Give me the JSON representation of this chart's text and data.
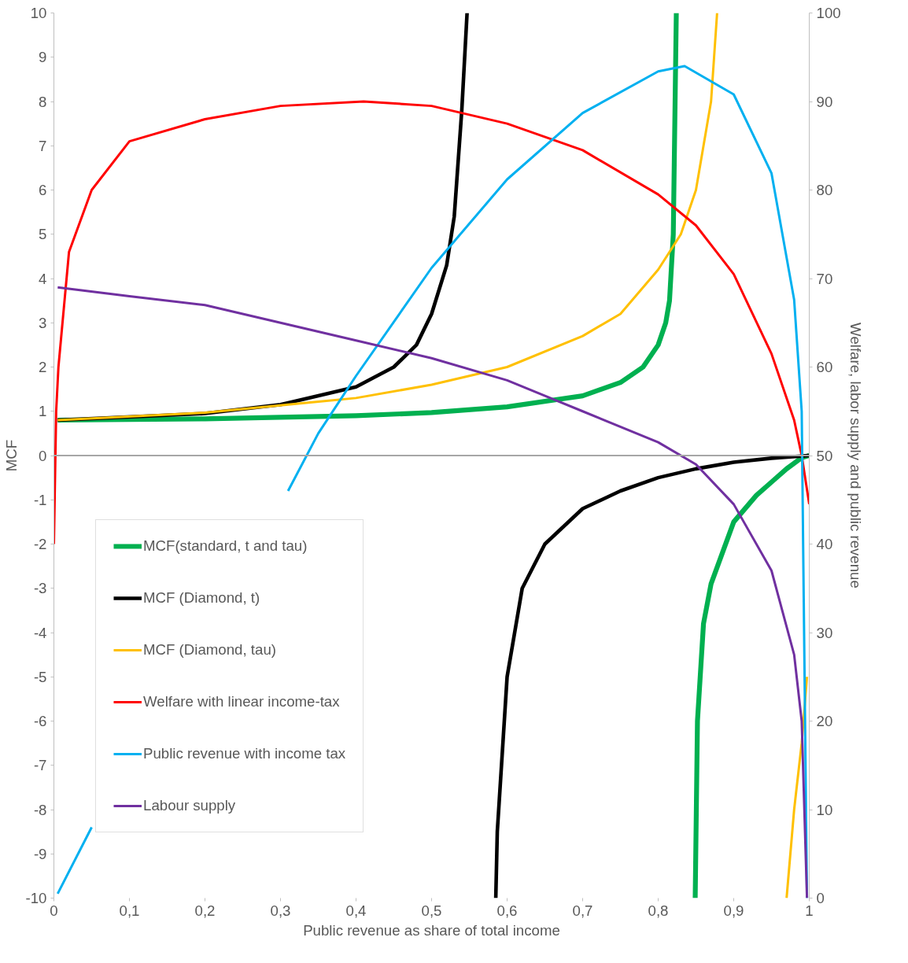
{
  "chart_data": {
    "type": "line",
    "xlabel": "Public revenue as share of total income",
    "ylabel": "MCF",
    "y2label": "Welfare, labor supply and public revenue",
    "xlim": [
      0,
      1
    ],
    "xticks": [
      0,
      {
        "value": 0.1,
        "label": "0,1"
      },
      {
        "value": 0.2,
        "label": "0,2"
      },
      {
        "value": 0.3,
        "label": "0,3"
      },
      {
        "value": 0.4,
        "label": "0,4"
      },
      {
        "value": 0.5,
        "label": "0,5"
      },
      {
        "value": 0.6,
        "label": "0,6"
      },
      {
        "value": 0.7,
        "label": "0,7"
      },
      {
        "value": 0.8,
        "label": "0,8"
      },
      {
        "value": 0.9,
        "label": "0,9"
      },
      1
    ],
    "ylim": [
      -10,
      10
    ],
    "yticks": [
      -10,
      -9,
      -8,
      -7,
      -6,
      -5,
      -4,
      -3,
      -2,
      -1,
      0,
      1,
      2,
      3,
      4,
      5,
      6,
      7,
      8,
      9,
      10
    ],
    "y2lim": [
      0,
      100
    ],
    "y2ticks": [
      0,
      10,
      20,
      30,
      40,
      50,
      60,
      70,
      80,
      90,
      100
    ],
    "legend": "bottom left",
    "grid": false,
    "marker": "none",
    "line_style": "solid",
    "ref_lines": [
      {
        "axis": "y",
        "value": 0,
        "color": "#a6a6a6"
      }
    ],
    "series": [
      {
        "name": "MCF(standard, t and tau)",
        "color": "#00b050",
        "x": [
          0.005,
          0.2,
          0.4,
          0.5,
          0.6,
          0.7,
          0.75,
          0.78,
          0.8,
          0.81,
          0.815,
          0.82,
          0.824,
          0.83,
          0.849,
          0.852,
          0.86,
          0.87,
          0.9,
          0.93,
          0.95,
          0.97,
          0.99,
          1.0
        ],
        "values": [
          0.8,
          0.83,
          0.9,
          0.97,
          1.1,
          1.35,
          1.65,
          2.0,
          2.5,
          3.0,
          3.5,
          5.0,
          10,
          null,
          -10,
          -6,
          -3.8,
          -2.9,
          -1.5,
          -0.9,
          -0.6,
          -0.3,
          -0.05,
          0
        ]
      },
      {
        "name": "MCF (Diamond, t)",
        "color": "#000000",
        "x": [
          0.005,
          0.2,
          0.3,
          0.4,
          0.45,
          0.48,
          0.5,
          0.52,
          0.53,
          0.54,
          0.547,
          0.56,
          0.585,
          0.587,
          0.6,
          0.62,
          0.65,
          0.7,
          0.75,
          0.8,
          0.85,
          0.9,
          0.95,
          1.0
        ],
        "values": [
          0.8,
          0.95,
          1.15,
          1.55,
          2.0,
          2.5,
          3.2,
          4.3,
          5.4,
          7.8,
          10,
          null,
          -10,
          -8.5,
          -5,
          -3,
          -2,
          -1.2,
          -0.8,
          -0.5,
          -0.3,
          -0.15,
          -0.06,
          0
        ]
      },
      {
        "name": "MCF (Diamond, tau)",
        "color": "#ffc000",
        "x": [
          0.005,
          0.2,
          0.4,
          0.5,
          0.6,
          0.7,
          0.75,
          0.8,
          0.83,
          0.85,
          0.87,
          0.878,
          0.9,
          0.97,
          0.98,
          0.99,
          0.997
        ],
        "values": [
          0.8,
          0.97,
          1.3,
          1.6,
          2.0,
          2.7,
          3.2,
          4.2,
          5.0,
          6.0,
          8.0,
          10,
          null,
          -10,
          -8,
          -6.5,
          -5
        ]
      },
      {
        "name": "Welfare with linear income-tax",
        "color": "#ff0000",
        "axis": "y2",
        "x": [
          0,
          0.003,
          0.006,
          0.02,
          0.05,
          0.1,
          0.2,
          0.3,
          0.41,
          0.5,
          0.6,
          0.7,
          0.8,
          0.85,
          0.9,
          0.95,
          0.98,
          0.99,
          1.0
        ],
        "values": [
          40,
          55,
          60,
          73,
          80,
          85.5,
          88,
          89.5,
          90,
          89.5,
          87.5,
          84.5,
          79.5,
          76,
          70.5,
          61.5,
          54,
          50,
          44.5
        ]
      },
      {
        "name": "Public revenue with income tax",
        "color": "#00b0f0",
        "axis": "y2",
        "x": [
          0.005,
          0.05,
          0.1,
          0.31,
          0.35,
          0.4,
          0.5,
          0.6,
          0.7,
          0.8,
          0.835,
          0.9,
          0.95,
          0.98,
          0.99,
          0.997
        ],
        "values": [
          0.5,
          8,
          null,
          46,
          52.5,
          59,
          71.2,
          81.2,
          88.7,
          93.4,
          94,
          90.8,
          81.9,
          67.6,
          55,
          0
        ]
      },
      {
        "name": "Labour supply",
        "color": "#7030a0",
        "axis": "y2",
        "x": [
          0.005,
          0.1,
          0.2,
          0.3,
          0.4,
          0.5,
          0.6,
          0.7,
          0.8,
          0.85,
          0.9,
          0.95,
          0.98,
          0.99,
          0.997
        ],
        "values": [
          69,
          68,
          67,
          65,
          63,
          61,
          58.5,
          55,
          51.5,
          49,
          44.5,
          37,
          27.5,
          20,
          0
        ]
      }
    ]
  }
}
